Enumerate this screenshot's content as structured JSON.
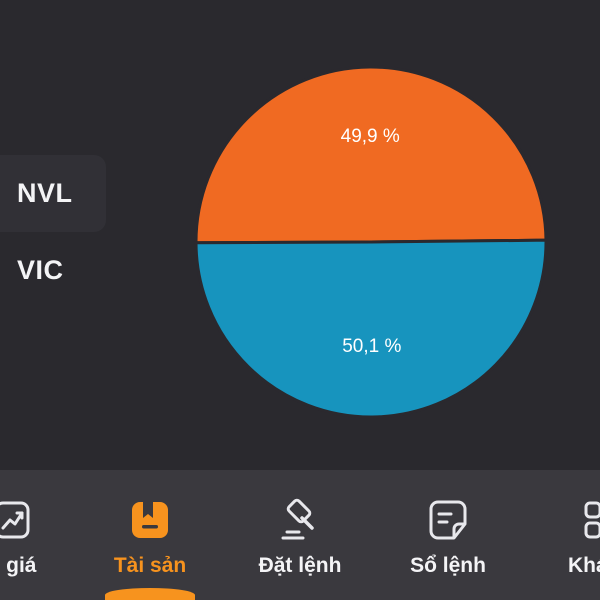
{
  "legend": [
    {
      "label": "NVL",
      "selected": true
    },
    {
      "label": "VIC",
      "selected": false
    }
  ],
  "chart_data": {
    "type": "pie",
    "categories": [
      "NVL",
      "VIC"
    ],
    "values": [
      49.9,
      50.1
    ],
    "labels": [
      "49,9 %",
      "50,1 %"
    ],
    "colors": [
      "#f06a22",
      "#1794be"
    ]
  },
  "bottom_nav": {
    "items": [
      {
        "label": "g giá",
        "icon": "chart-trend-icon",
        "active": false
      },
      {
        "label": "Tài sản",
        "icon": "wallet-icon",
        "active": true
      },
      {
        "label": "Đặt lệnh",
        "icon": "gavel-icon",
        "active": false
      },
      {
        "label": "Sổ lệnh",
        "icon": "order-book-icon",
        "active": false
      },
      {
        "label": "Khá",
        "icon": "grid-icon",
        "active": false
      }
    ],
    "active_color": "#f7931e"
  }
}
